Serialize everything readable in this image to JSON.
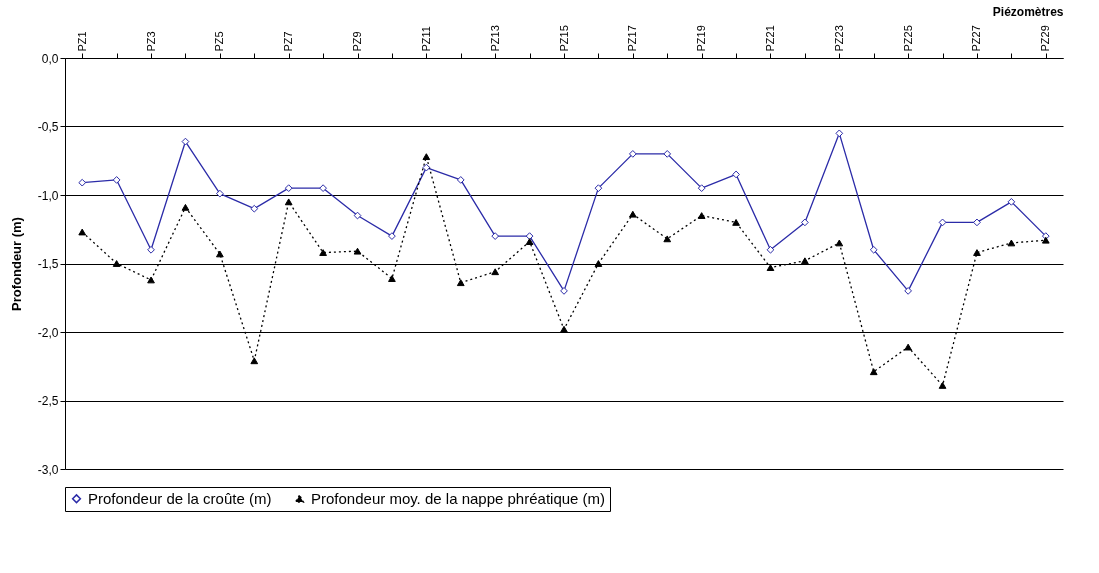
{
  "chart_data": {
    "type": "line",
    "xlabel": "Piézomètres",
    "ylabel": "Profondeur (m)",
    "categories": [
      "PZ1",
      null,
      "PZ3",
      null,
      "PZ5",
      null,
      "PZ7",
      null,
      "PZ9",
      null,
      "PZ11",
      null,
      "PZ13",
      null,
      "PZ15",
      null,
      "PZ17",
      null,
      "PZ19",
      null,
      "PZ21",
      null,
      "PZ23",
      null,
      "PZ25",
      null,
      "PZ27",
      null,
      "PZ29"
    ],
    "series": [
      {
        "name": "Profondeur de la croûte (m)",
        "color": "#2b2ba8",
        "marker": "diamond",
        "line_style": "solid",
        "values": [
          -0.91,
          -0.89,
          -1.4,
          -0.61,
          -0.99,
          -1.1,
          -0.95,
          -0.95,
          -1.15,
          -1.3,
          -0.8,
          -0.89,
          -1.3,
          -1.3,
          -1.7,
          -0.95,
          -0.7,
          -0.7,
          -0.95,
          -0.85,
          -1.4,
          -1.2,
          -0.55,
          -1.4,
          -1.7,
          -1.2,
          -1.2,
          -1.05,
          -1.3
        ]
      },
      {
        "name": "Profondeur moy. de la nappe phréatique (m)",
        "color": "#000000",
        "marker": "triangle",
        "line_style": "dotted",
        "values": [
          -1.27,
          -1.5,
          -1.62,
          -1.09,
          -1.43,
          -2.21,
          -1.05,
          -1.42,
          -1.41,
          -1.61,
          -0.72,
          -1.64,
          -1.56,
          -1.34,
          -1.98,
          -1.5,
          -1.14,
          -1.32,
          -1.15,
          -1.2,
          -1.53,
          -1.48,
          -1.35,
          -2.29,
          -2.11,
          -2.39,
          -1.42,
          -1.35,
          -1.33
        ]
      }
    ],
    "ylim": [
      -3,
      0
    ],
    "yticks": [
      {
        "value": -3,
        "label": "-3,0"
      },
      {
        "value": -2.5,
        "label": "-2,5"
      },
      {
        "value": -2,
        "label": "-2,0"
      },
      {
        "value": -1.5,
        "label": "-1,5"
      },
      {
        "value": -1,
        "label": "-1,0"
      },
      {
        "value": -0.5,
        "label": "-0,5"
      },
      {
        "value": 0,
        "label": "0,0"
      }
    ],
    "grid": "y",
    "legend": "bottom"
  }
}
